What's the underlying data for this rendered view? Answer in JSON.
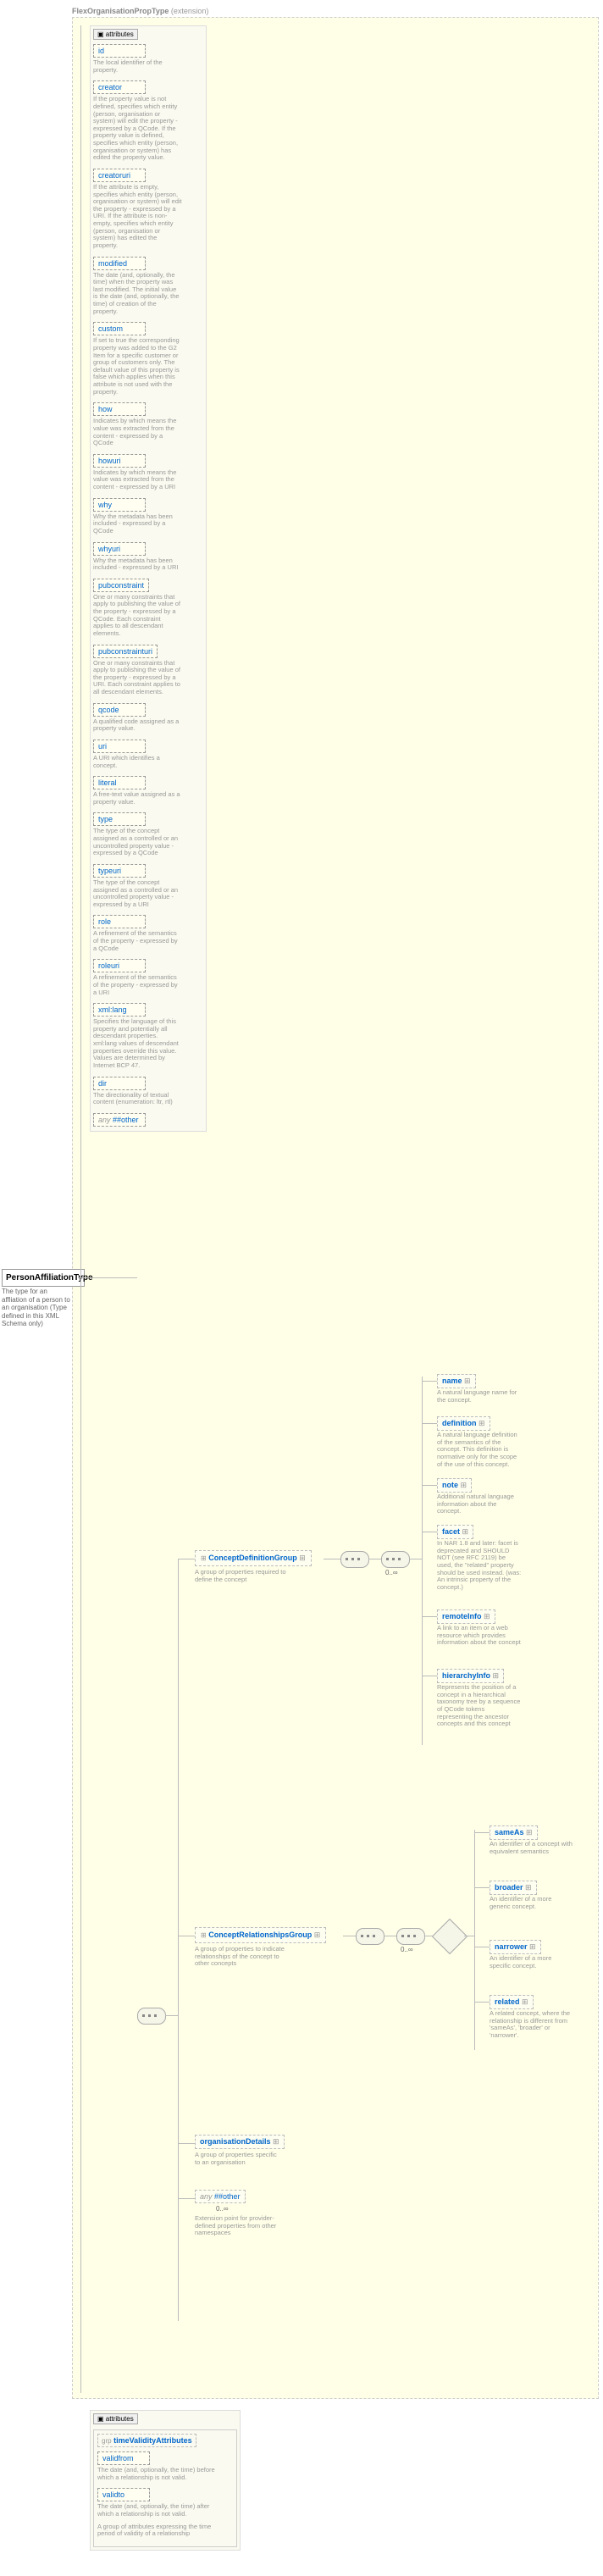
{
  "ext": {
    "name": "FlexOrganisationPropType",
    "suffix": "(extension)"
  },
  "root": {
    "name": "PersonAffiliationType",
    "desc": "The type for an affliation of a person to an organisation (Type defined in this XML Schema only)"
  },
  "attributes_label": "attributes",
  "attrs": [
    {
      "name": "id",
      "desc": "The local identifier of the property."
    },
    {
      "name": "creator",
      "desc": "If the property value is not defined, specifies which entity (person, organisation or system) will edit the property - expressed by a QCode. If the property value is defined, specifies which entity (person, organisation or system) has edited the property value."
    },
    {
      "name": "creatoruri",
      "desc": "If the attribute is empty, specifies which entity (person, organisation or system) will edit the property - expressed by a URI. If the attribute is non-empty, specifies which entity (person, organisation or system) has edited the property."
    },
    {
      "name": "modified",
      "desc": "The date (and, optionally, the time) when the property was last modified. The initial value is the date (and, optionally, the time) of creation of the property."
    },
    {
      "name": "custom",
      "desc": "If set to true the corresponding property was added to the G2 Item for a specific customer or group of customers only. The default value of this property is false which applies when this attribute is not used with the property."
    },
    {
      "name": "how",
      "desc": "Indicates by which means the value was extracted from the content - expressed by a QCode"
    },
    {
      "name": "howuri",
      "desc": "Indicates by which means the value was extracted from the content - expressed by a URI"
    },
    {
      "name": "why",
      "desc": "Why the metadata has been included - expressed by a QCode"
    },
    {
      "name": "whyuri",
      "desc": "Why the metadata has been included - expressed by a URI"
    },
    {
      "name": "pubconstraint",
      "desc": "One or many constraints that apply to publishing the value of the property - expressed by a QCode. Each constraint applies to all descendant elements."
    },
    {
      "name": "pubconstrainturi",
      "desc": "One or many constraints that apply to publishing the value of the property - expressed by a URI. Each constraint applies to all descendant elements."
    },
    {
      "name": "qcode",
      "desc": "A qualified code assigned as a property value."
    },
    {
      "name": "uri",
      "desc": "A URI which identifies a concept."
    },
    {
      "name": "literal",
      "desc": "A free-text value assigned as a property value."
    },
    {
      "name": "type",
      "desc": "The type of the concept assigned as a controlled or an uncontrolled property value - expressed by a QCode"
    },
    {
      "name": "typeuri",
      "desc": "The type of the concept assigned as a controlled or an uncontrolled property value - expressed by a URI"
    },
    {
      "name": "role",
      "desc": "A refinement of the semantics of the property - expressed by a QCode"
    },
    {
      "name": "roleuri",
      "desc": "A refinement of the semantics of the property - expressed by a URI"
    },
    {
      "name": "xml:lang",
      "desc": "Specifies the language of this property and potentially all descendant properties. xml:lang values of descendant properties override this value. Values are determined by Internet BCP 47."
    },
    {
      "name": "dir",
      "desc": "The directionality of textual content (enumeration: ltr, rtl)"
    }
  ],
  "any_attr": {
    "prefix": "any",
    "val": "##other"
  },
  "groups": {
    "concept_def": {
      "name": "ConceptDefinitionGroup",
      "desc": "A group of properties required to define the concept"
    },
    "concept_rel": {
      "name": "ConceptRelationshipsGroup",
      "desc": "A group of properties to indicate relationships of the concept to other concepts"
    },
    "org_details": {
      "name": "organisationDetails",
      "desc": "A group of properties specific to an organisation"
    },
    "any_other": {
      "prefix": "any",
      "val": "##other",
      "desc": "Extension point for provider-defined properties from other namespaces",
      "mult": "0..∞"
    }
  },
  "defgroup_elems": [
    {
      "name": "name",
      "desc": "A natural language name for the concept."
    },
    {
      "name": "definition",
      "desc": "A natural language definition of the semantics of the concept. This definition is normative only for the scope of the use of this concept."
    },
    {
      "name": "note",
      "desc": "Additional natural language information about the concept."
    },
    {
      "name": "facet",
      "desc": "In NAR 1.8 and later: facet is deprecated and SHOULD NOT (see RFC 2119) be used, the \"related\" property should be used instead. (was: An intrinsic property of the concept.)"
    },
    {
      "name": "remoteInfo",
      "desc": "A link to an item or a web resource which provides information about the concept"
    },
    {
      "name": "hierarchyInfo",
      "desc": "Represents the position of a concept in a hierarchical taxonomy tree by a sequence of QCode tokens representing the ancestor concepts and this concept"
    }
  ],
  "relgroup_elems": [
    {
      "name": "sameAs",
      "desc": "An identifier of a concept with equivalent semantics"
    },
    {
      "name": "broader",
      "desc": "An identifier of a more generic concept."
    },
    {
      "name": "narrower",
      "desc": "An identifier of a more specific concept."
    },
    {
      "name": "related",
      "desc": "A related concept, where the relationship is different from 'sameAs', 'broader' or 'narrower'."
    }
  ],
  "time_group": {
    "prefix": "grp",
    "name": "timeValidityAttributes",
    "attrs": [
      {
        "name": "validfrom",
        "desc": "The date (and, optionally, the time) before which a relationship is not valid."
      },
      {
        "name": "validto",
        "desc": "The date (and, optionally, the time) after which a relationship is not valid."
      }
    ],
    "desc": "A group of attributes expressing the time period of validity of a relationship"
  },
  "mult_0inf": "0..∞"
}
